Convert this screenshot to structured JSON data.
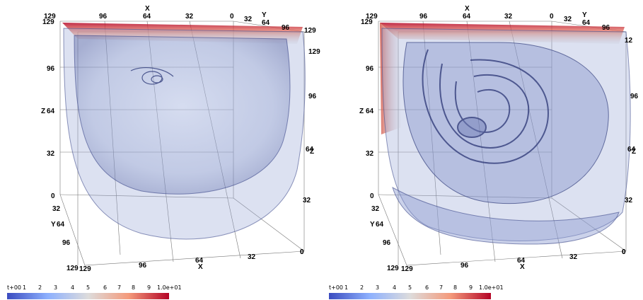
{
  "panels": [
    {
      "id": "left",
      "axis_labels": {
        "x_top": [
          "129",
          "96",
          "64",
          "32",
          "0"
        ],
        "x_top_title": "X",
        "y_top": [
          "32",
          "64",
          "96",
          "129"
        ],
        "y_top_title": "Y",
        "z_left": [
          "129",
          "96",
          "64",
          "32",
          "0"
        ],
        "z_left_title": "Z",
        "y_left": [
          "32",
          "64",
          "96",
          "129"
        ],
        "y_left_title": "Y",
        "x_bottom": [
          "129",
          "96",
          "64",
          "32",
          "0"
        ],
        "x_bottom_title": "X",
        "z_right": [
          "129",
          "96",
          "64",
          "32",
          "0"
        ],
        "z_right_title": "Z"
      },
      "colorbar": {
        "ticks": [
          "t+00",
          "1",
          "2",
          "3",
          "4",
          "5",
          "6",
          "7",
          "8",
          "9",
          "1.0e+01"
        ],
        "gradient": [
          "#3b4cc0",
          "#8db0fe",
          "#dddcdc",
          "#f49a7b",
          "#b40426"
        ]
      }
    },
    {
      "id": "right",
      "axis_labels": {
        "x_top": [
          "129",
          "96",
          "64",
          "32",
          "0"
        ],
        "x_top_title": "X",
        "y_top": [
          "32",
          "64",
          "96",
          "12"
        ],
        "y_top_title": "Y",
        "z_left": [
          "129",
          "96",
          "64",
          "32",
          "0"
        ],
        "z_left_title": "Z",
        "y_left": [
          "32",
          "64",
          "96",
          "129"
        ],
        "y_left_title": "Y",
        "x_bottom": [
          "129",
          "96",
          "64",
          "32",
          "0"
        ],
        "x_bottom_title": "X",
        "z_right": [
          "96",
          "64",
          "32",
          "0"
        ],
        "z_right_title": "Z"
      },
      "colorbar": {
        "ticks": [
          "t+00",
          "1",
          "2",
          "3",
          "4",
          "5",
          "6",
          "7",
          "8",
          "9",
          "1.0e+01"
        ],
        "gradient": [
          "#3b4cc0",
          "#8db0fe",
          "#dddcdc",
          "#f49a7b",
          "#b40426"
        ]
      }
    }
  ]
}
